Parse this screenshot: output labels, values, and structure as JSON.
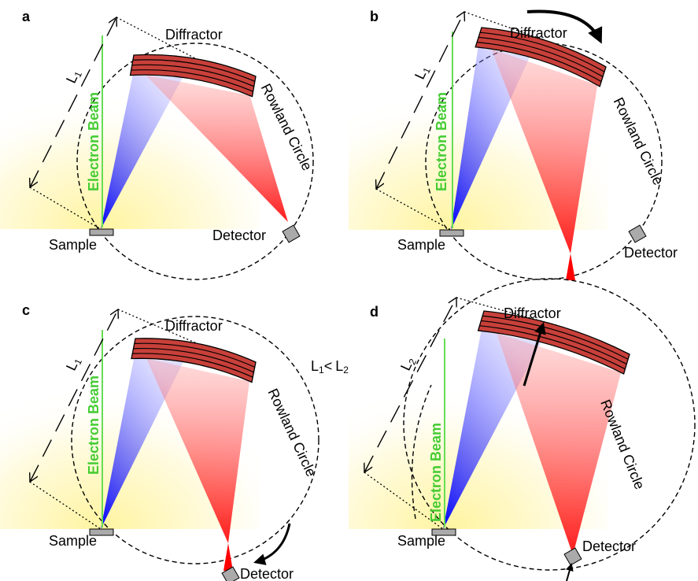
{
  "panels": [
    {
      "label": "a",
      "diffractor": "Diffractor",
      "circle": "Rowland Circle",
      "beam": "Electron Beam",
      "sample": "Sample",
      "detector": "Detector",
      "length": {
        "symbol": "L",
        "subscript": "1"
      }
    },
    {
      "label": "b",
      "diffractor": "Diffractor",
      "circle": "Rowland Circle",
      "beam": "Electron Beam",
      "sample": "Sample",
      "detector": "Detector",
      "length": {
        "symbol": "L",
        "subscript": "1"
      }
    },
    {
      "label": "c",
      "diffractor": "Diffractor",
      "circle": "Rowland Circle",
      "beam": "Electron Beam",
      "sample": "Sample",
      "detector": "Detector",
      "length": {
        "symbol": "L",
        "subscript": "1"
      }
    },
    {
      "label": "d",
      "diffractor": "Diffractor",
      "circle": "Rowland Circle",
      "beam": "Electron Beam",
      "sample": "Sample",
      "detector": "Detector",
      "length": {
        "symbol": "L",
        "subscript": "2"
      }
    }
  ],
  "comparison": {
    "left": {
      "symbol": "L",
      "subscript": "1"
    },
    "operator": "<",
    "right": {
      "symbol": "L",
      "subscript": "2"
    }
  }
}
